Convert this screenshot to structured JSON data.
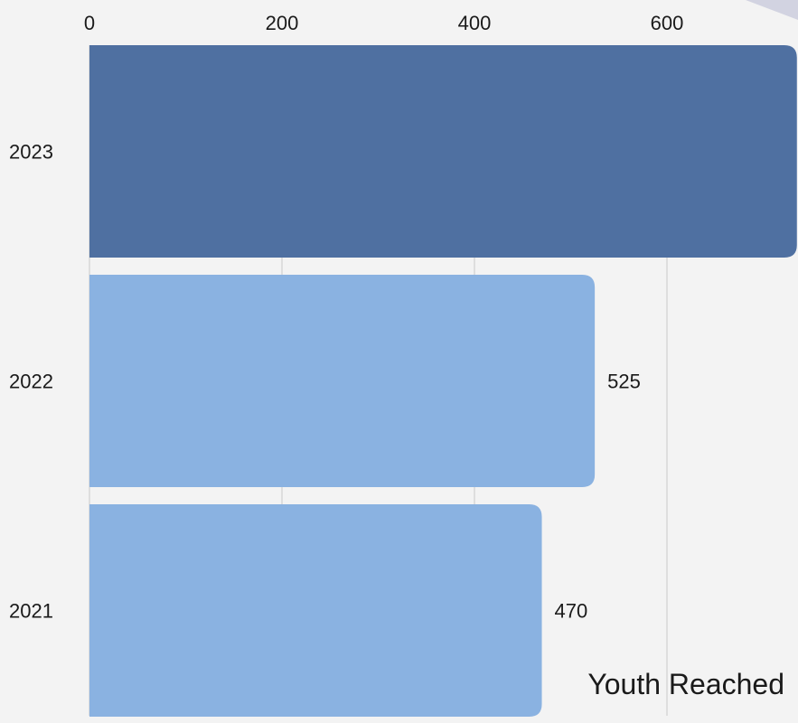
{
  "chart_data": {
    "type": "bar",
    "orientation": "horizontal",
    "categories": [
      "2023",
      "2022",
      "2021"
    ],
    "values": [
      735,
      525,
      470
    ],
    "value_labels": [
      "",
      "525",
      "470"
    ],
    "xlabel": "Youth Reached",
    "xticks": [
      "0",
      "200",
      "400",
      "600"
    ],
    "xtick_values": [
      0,
      200,
      400,
      600
    ],
    "xlim": [
      0,
      735
    ],
    "grid": true,
    "axis_position": "top",
    "colors": {
      "highlight": "#4f70a1",
      "default": "#8ab2e1"
    },
    "highlight_category": "2023"
  }
}
